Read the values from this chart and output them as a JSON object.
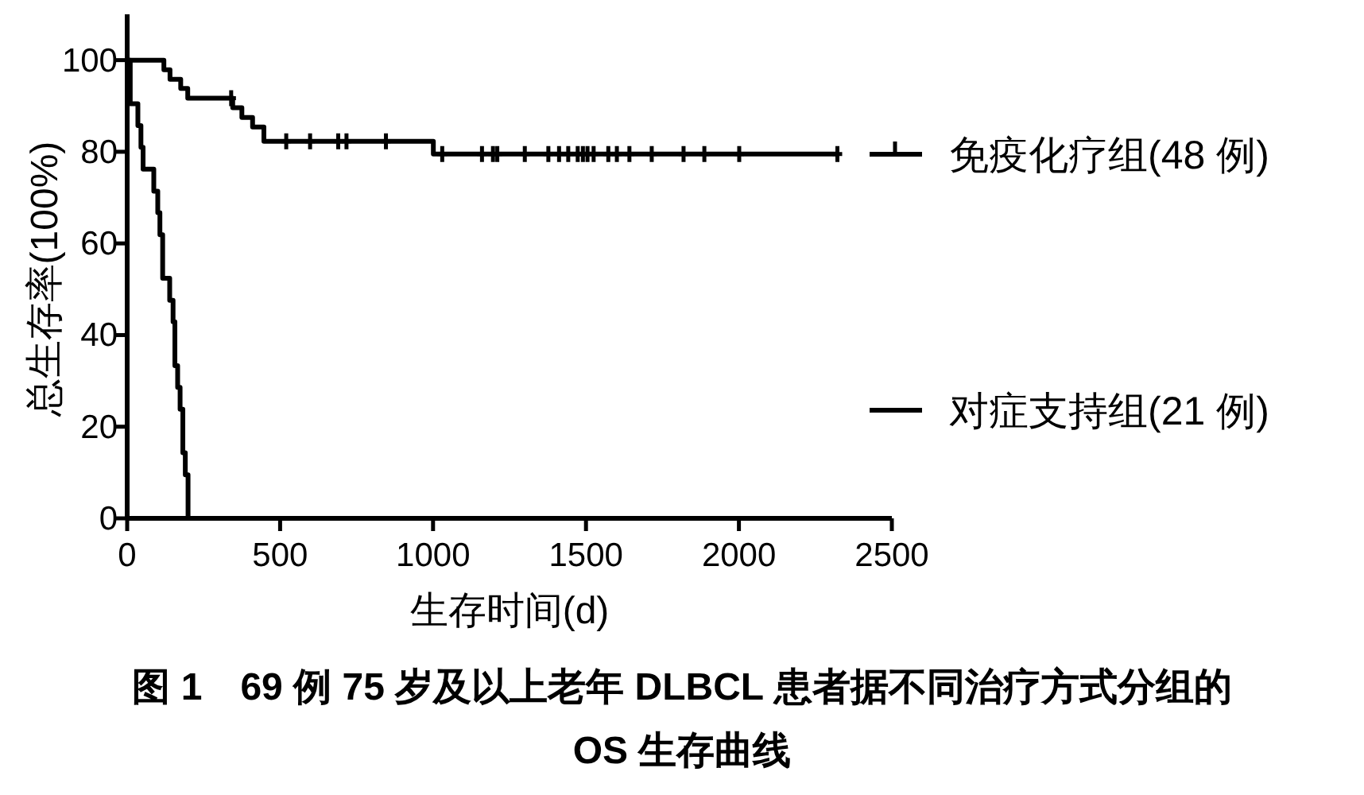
{
  "chart_data": {
    "type": "step",
    "title": "图 1　69 例 75 岁及以上老年 DLBCL 患者据不同治疗方式分组的 OS 生存曲线",
    "xlabel": "生存时间(d)",
    "ylabel": "总生存率(100%)",
    "xlim": [
      0,
      2500
    ],
    "xticks": [
      0,
      500,
      1000,
      1500,
      2000,
      2500
    ],
    "ylim": [
      0,
      110
    ],
    "yticks": [
      0,
      20,
      40,
      60,
      80,
      100
    ],
    "grid": false,
    "legend": "right",
    "line_style": "solid",
    "series": [
      {
        "name": "免疫化疗组(48 例)",
        "color": "#000000",
        "x": [
          0,
          120,
          140,
          175,
          198,
          345,
          375,
          410,
          447,
          1001,
          2322
        ],
        "values": [
          100,
          97.9,
          95.8,
          93.8,
          91.7,
          89.6,
          87.5,
          85.4,
          82.3,
          79.5,
          79.5
        ]
      },
      {
        "name": "对症支持组(21 例)",
        "color": "#000000",
        "x": [
          0,
          10,
          35,
          45,
          52,
          87,
          100,
          107,
          116,
          139,
          150,
          156,
          165,
          173,
          182,
          190,
          199
        ],
        "values": [
          100,
          90.5,
          85.7,
          81,
          76.2,
          71.4,
          66.7,
          61.9,
          52.4,
          47.6,
          42.9,
          33.3,
          28.6,
          23.8,
          14.3,
          9.5,
          0
        ]
      },
      {
        "type": "scatter",
        "marker": "cross",
        "color": "#000000",
        "x": [
          340,
          520,
          598,
          690,
          717,
          846,
          1030,
          1160,
          1196,
          1210,
          1300,
          1377,
          1412,
          1442,
          1473,
          1490,
          1505,
          1525,
          1573,
          1601,
          1642,
          1715,
          1819,
          1887,
          2001,
          2322
        ],
        "values": [
          91.7,
          82.3,
          82.3,
          82.3,
          82.3,
          82.3,
          79.5,
          79.5,
          79.5,
          79.5,
          79.5,
          79.5,
          79.5,
          79.5,
          79.5,
          79.5,
          79.5,
          79.5,
          79.5,
          79.5,
          79.5,
          79.5,
          79.5,
          79.5,
          79.5,
          79.5
        ]
      }
    ]
  }
}
